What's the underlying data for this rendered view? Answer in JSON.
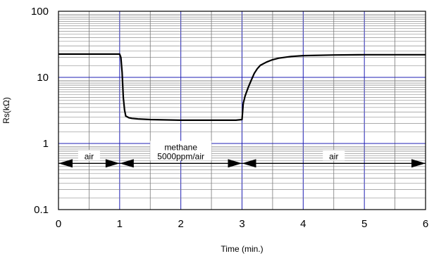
{
  "chart_data": {
    "type": "line",
    "title": "",
    "xlabel": "Time (min.)",
    "ylabel": "Rs(kΩ)",
    "xlim": [
      0,
      6
    ],
    "ylim": [
      0.1,
      100
    ],
    "yscale": "log",
    "grid": true,
    "legend": "none",
    "x_ticks": [
      0,
      1,
      2,
      3,
      4,
      5,
      6
    ],
    "x_tick_labels": [
      "0",
      "1",
      "2",
      "3",
      "4",
      "5",
      "6"
    ],
    "y_ticks": [
      0.1,
      1,
      10,
      100
    ],
    "y_tick_labels": [
      "0.1",
      "1",
      "10",
      "100"
    ],
    "colors": {
      "line": "#000000",
      "major_grid": "#1f1fb4",
      "minor_grid": "#7a7a7a",
      "frame": "#000000"
    },
    "series": [
      {
        "x": [
          0,
          0.5,
          1.0,
          1.02,
          1.04,
          1.06,
          1.08,
          1.1,
          1.15,
          1.2,
          1.3,
          1.5,
          2.0,
          2.5,
          2.9,
          3.0,
          3.02,
          3.05,
          3.1,
          3.15,
          3.2,
          3.25,
          3.3,
          3.4,
          3.5,
          3.6,
          3.8,
          4.0,
          4.5,
          5.0,
          6.0
        ],
        "y": [
          22.5,
          22.5,
          22.5,
          20,
          12,
          5,
          3.2,
          2.6,
          2.45,
          2.4,
          2.35,
          2.3,
          2.25,
          2.25,
          2.25,
          2.3,
          4.0,
          5.2,
          7.0,
          9.0,
          11.5,
          13.5,
          15.2,
          17.0,
          18.5,
          19.5,
          20.7,
          21.3,
          21.8,
          22.0,
          22.0
        ]
      }
    ],
    "annotations": [
      {
        "id": "air1",
        "lines": [
          "air"
        ],
        "x_from": 0,
        "x_to": 1,
        "y": 0.5
      },
      {
        "id": "methane",
        "lines": [
          "methane",
          "5000ppm/air"
        ],
        "x_from": 1,
        "x_to": 3,
        "y": 0.5
      },
      {
        "id": "air2",
        "lines": [
          "air"
        ],
        "x_from": 3,
        "x_to": 6,
        "y": 0.5
      }
    ]
  }
}
